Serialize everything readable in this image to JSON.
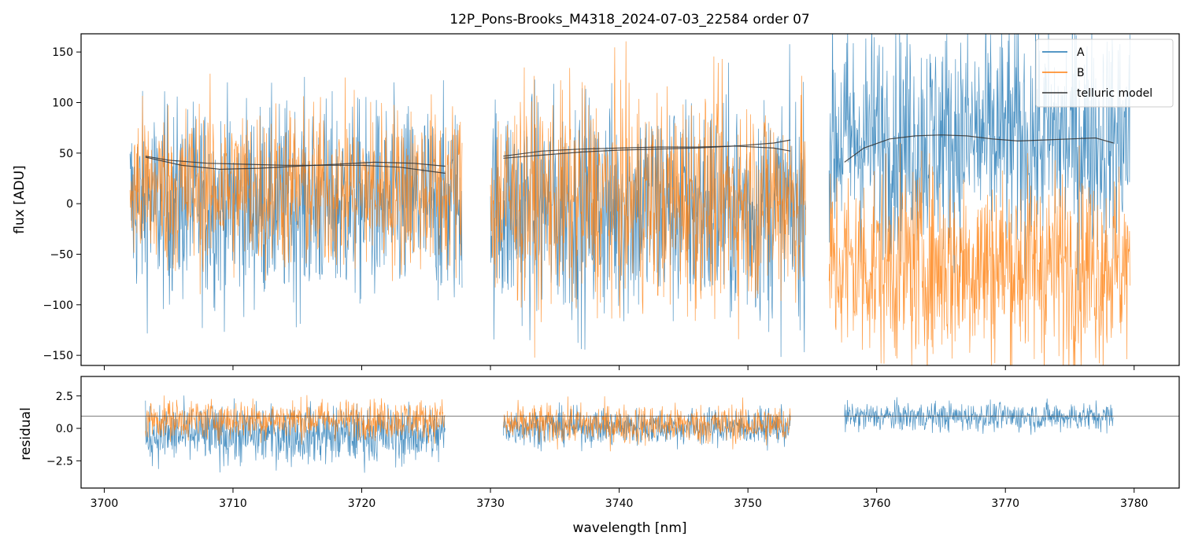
{
  "title": "12P_Pons-Brooks_M4318_2024-07-03_22584  order 07",
  "colors": {
    "A": "#1f77b4",
    "B": "#ff7f0e",
    "telluric": "#333333"
  },
  "chart_data": [
    {
      "panel": "top",
      "type": "line",
      "title": "12P_Pons-Brooks_M4318_2024-07-03_22584  order 07",
      "xlabel": "",
      "ylabel": "flux [ADU]",
      "xlim": [
        3698.2,
        3783.5
      ],
      "ylim": [
        -160,
        168
      ],
      "yticks": [
        -150,
        -100,
        -50,
        0,
        50,
        100,
        150
      ],
      "xticks": [
        3700,
        3710,
        3720,
        3730,
        3740,
        3750,
        3760,
        3770,
        3780
      ],
      "legend": {
        "placement": "top-right",
        "entries": [
          "A",
          "B",
          "telluric model"
        ]
      },
      "grid": false,
      "series": [
        {
          "name": "A",
          "segments": [
            {
              "x_range": [
                3702.0,
                3727.8
              ],
              "mean": 0,
              "spread": 70
            },
            {
              "x_range": [
                3730.0,
                3754.5
              ],
              "mean": -5,
              "spread": 80
            },
            {
              "x_range": [
                3756.3,
                3779.7
              ],
              "mean": 65,
              "spread": 80
            }
          ]
        },
        {
          "name": "B",
          "segments": [
            {
              "x_range": [
                3702.0,
                3727.8
              ],
              "mean": 15,
              "spread": 60
            },
            {
              "x_range": [
                3730.0,
                3754.5
              ],
              "mean": 5,
              "spread": 75
            },
            {
              "x_range": [
                3756.3,
                3779.7
              ],
              "mean": -60,
              "spread": 70
            }
          ]
        },
        {
          "name": "telluric model",
          "curves": [
            {
              "x": [
                3703.2,
                3705,
                3708,
                3711,
                3714,
                3717,
                3720,
                3723,
                3726.5
              ],
              "y": [
                47,
                43,
                40,
                39,
                38,
                38,
                38,
                36,
                30
              ]
            },
            {
              "x": [
                3703.2,
                3706,
                3709,
                3712,
                3715,
                3718,
                3721,
                3724,
                3726.5
              ],
              "y": [
                46,
                38,
                34,
                35,
                37,
                39,
                41,
                40,
                37
              ]
            },
            {
              "x": [
                3731.0,
                3734,
                3737,
                3740,
                3743,
                3746,
                3749,
                3752,
                3753.3
              ],
              "y": [
                45,
                48,
                51,
                53,
                54,
                55,
                57,
                60,
                63
              ]
            },
            {
              "x": [
                3731.0,
                3734,
                3737,
                3740,
                3743,
                3746,
                3749,
                3752,
                3753.3
              ],
              "y": [
                47,
                52,
                54,
                55,
                56,
                56,
                57,
                55,
                52
              ]
            },
            {
              "x": [
                3757.5,
                3759,
                3761,
                3763,
                3765,
                3767,
                3769,
                3771,
                3773,
                3775,
                3777,
                3778.4
              ],
              "y": [
                41,
                55,
                64,
                67,
                68,
                67,
                64,
                62,
                63,
                64,
                65,
                60
              ]
            }
          ]
        }
      ]
    },
    {
      "panel": "bottom",
      "type": "line",
      "xlabel": "wavelength [nm]",
      "ylabel": "residual",
      "xlim": [
        3698.2,
        3783.5
      ],
      "ylim": [
        -4.6,
        4.0
      ],
      "yticks": [
        -2.5,
        0.0,
        2.5
      ],
      "ytick_labels": [
        "−2.5",
        "0.0",
        "2.5"
      ],
      "xticks": [
        3700,
        3710,
        3720,
        3730,
        3740,
        3750,
        3760,
        3770,
        3780
      ],
      "reference_line": 0.95,
      "grid": false,
      "series": [
        {
          "name": "A",
          "segments": [
            {
              "x_range": [
                3703.2,
                3726.5
              ],
              "mean": -0.5,
              "spread": 1.6
            },
            {
              "x_range": [
                3731.0,
                3753.3
              ],
              "mean": 0.1,
              "spread": 1.0
            },
            {
              "x_range": [
                3757.5,
                3778.4
              ],
              "mean": 0.9,
              "spread": 0.8
            }
          ]
        },
        {
          "name": "B",
          "segments": [
            {
              "x_range": [
                3703.2,
                3726.5
              ],
              "mean": 0.7,
              "spread": 1.1
            },
            {
              "x_range": [
                3731.0,
                3753.3
              ],
              "mean": 0.3,
              "spread": 1.1
            }
          ]
        }
      ]
    }
  ]
}
